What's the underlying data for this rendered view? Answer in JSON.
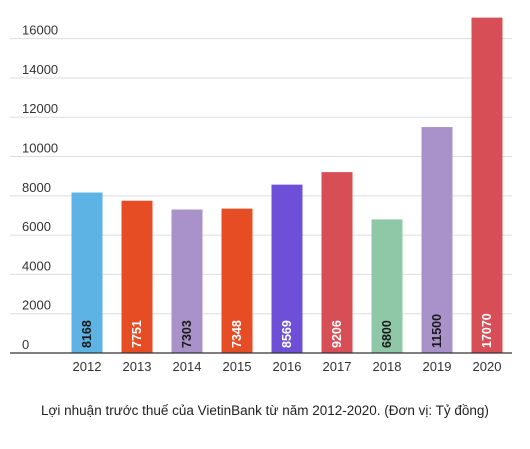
{
  "chart_data": {
    "type": "bar",
    "categories": [
      "2012",
      "2013",
      "2014",
      "2015",
      "2016",
      "2017",
      "2018",
      "2019",
      "2020"
    ],
    "values": [
      8168,
      7751,
      7303,
      7348,
      8569,
      9206,
      6800,
      11500,
      17070
    ],
    "data_labels": [
      "8168",
      "7751",
      "7303",
      "7348",
      "8569",
      "9206",
      "6800",
      "11500",
      "17070"
    ],
    "bar_colors": [
      "#5db3e4",
      "#e64d24",
      "#a991c9",
      "#e64d24",
      "#6e50d8",
      "#d84e57",
      "#8ec8a6",
      "#a991c9",
      "#d84e57"
    ],
    "label_colors": [
      "#1a1a1a",
      "#ffffff",
      "#1a1a1a",
      "#ffffff",
      "#ffffff",
      "#ffffff",
      "#1a1a1a",
      "#1a1a1a",
      "#ffffff"
    ],
    "ylim": [
      0,
      17000
    ],
    "yticks": [
      0,
      2000,
      4000,
      6000,
      8000,
      10000,
      12000,
      14000,
      16000
    ],
    "ytick_labels": [
      "0",
      "2000",
      "4000",
      "6000",
      "8000",
      "10000",
      "12000",
      "14000",
      "16000"
    ],
    "grid": true,
    "legend": "none",
    "caption": "Lợi nhuận trước thuế của VietinBank từ năm 2012-2020. (Đơn vị: Tỷ đồng)"
  }
}
